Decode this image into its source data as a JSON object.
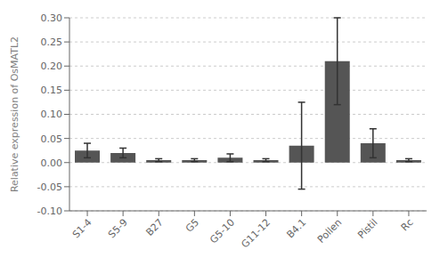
{
  "chart_data": {
    "type": "bar",
    "categories": [
      "S1-4",
      "S5-9",
      "B27",
      "G5",
      "G5-10",
      "G11-12",
      "B4.1",
      "Pollen",
      "Pistil",
      "Rc"
    ],
    "values": [
      0.025,
      0.02,
      0.005,
      0.005,
      0.01,
      0.005,
      0.035,
      0.21,
      0.04,
      0.005
    ],
    "errors": [
      0.015,
      0.01,
      0.003,
      0.003,
      0.008,
      0.003,
      0.09,
      0.09,
      0.03,
      0.003
    ],
    "ylabel": "Relative expression of OsMATL2",
    "ylim": [
      -0.1,
      0.3
    ],
    "yticks": [
      {
        "value": -0.1,
        "label": "-0.10"
      },
      -0.05,
      {
        "value": 0.0,
        "label": "0.00"
      },
      0.05,
      {
        "value": 0.1,
        "label": "0.10"
      },
      0.15,
      {
        "value": 0.2,
        "label": "0.20"
      },
      0.25,
      {
        "value": 0.3,
        "label": "0.30"
      }
    ],
    "color": "#555555"
  }
}
